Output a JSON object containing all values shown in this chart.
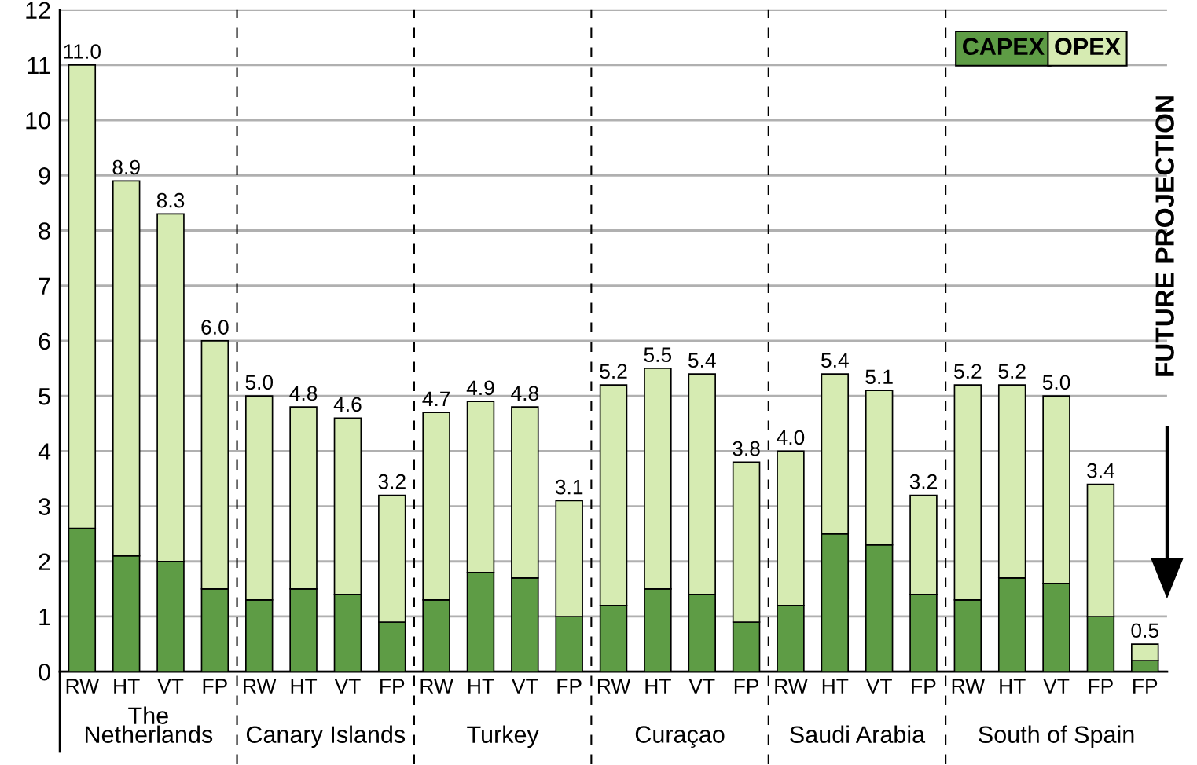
{
  "chart_data": {
    "type": "bar",
    "stacked": true,
    "categories": [
      "RW",
      "HT",
      "VT",
      "FP",
      "RW",
      "HT",
      "VT",
      "FP",
      "RW",
      "HT",
      "VT",
      "FP",
      "RW",
      "HT",
      "VT",
      "FP",
      "RW",
      "HT",
      "VT",
      "FP",
      "RW",
      "HT",
      "VT",
      "FP",
      "FP"
    ],
    "series": [
      {
        "name": "CAPEX",
        "color": "#5e9c45",
        "values": [
          2.6,
          2.1,
          2.0,
          1.5,
          1.3,
          1.5,
          1.4,
          0.9,
          1.3,
          1.8,
          1.7,
          1.0,
          1.2,
          1.5,
          1.4,
          0.9,
          1.2,
          2.5,
          2.3,
          1.4,
          1.3,
          1.7,
          1.6,
          1.0,
          0.2
        ]
      },
      {
        "name": "OPEX",
        "color": "#d6ebb2",
        "values": [
          8.4,
          6.8,
          6.3,
          4.5,
          3.7,
          3.3,
          3.2,
          2.3,
          3.4,
          3.1,
          3.1,
          2.1,
          4.0,
          4.0,
          4.0,
          2.9,
          2.8,
          2.9,
          2.8,
          1.8,
          3.9,
          3.5,
          3.4,
          2.4,
          0.3
        ]
      }
    ],
    "totals": [
      "11.0",
      "8.9",
      "8.3",
      "6.0",
      "5.0",
      "4.8",
      "4.6",
      "3.2",
      "4.7",
      "4.9",
      "4.8",
      "3.1",
      "5.2",
      "5.5",
      "5.4",
      "3.8",
      "4.0",
      "5.4",
      "5.1",
      "3.2",
      "5.2",
      "5.2",
      "5.0",
      "3.4",
      "0.5"
    ],
    "ylim": [
      0,
      12
    ],
    "yticks": [
      0,
      1,
      2,
      3,
      4,
      5,
      6,
      7,
      8,
      9,
      10,
      11,
      12
    ],
    "grid": "y",
    "legend": "top right",
    "annotations": [
      "The\nNetherlands",
      "Canary Islands",
      "Turkey",
      "Curaçao",
      "Saudi Arabia",
      "South of Spain",
      "FUTURE PROJECTION"
    ]
  }
}
